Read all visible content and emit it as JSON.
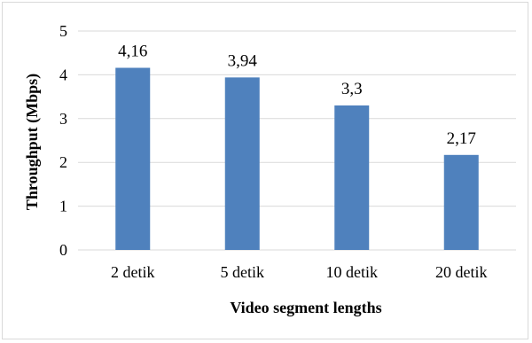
{
  "chart_data": {
    "type": "bar",
    "categories": [
      "2 detik",
      "5 detik",
      "10 detik",
      "20 detik"
    ],
    "values": [
      4.16,
      3.94,
      3.3,
      2.17
    ],
    "data_labels": [
      "4,16",
      "3,94",
      "3,3",
      "2,17"
    ],
    "ylim": [
      0,
      5
    ],
    "yticks": [
      0,
      1,
      2,
      3,
      4,
      5
    ],
    "xlabel": "Video segment lengths",
    "ylabel": "Throughput (Mbps)",
    "grid": true,
    "legend": "none",
    "bar_color": "#4f81bd",
    "grid_color": "#d9d9d9"
  }
}
